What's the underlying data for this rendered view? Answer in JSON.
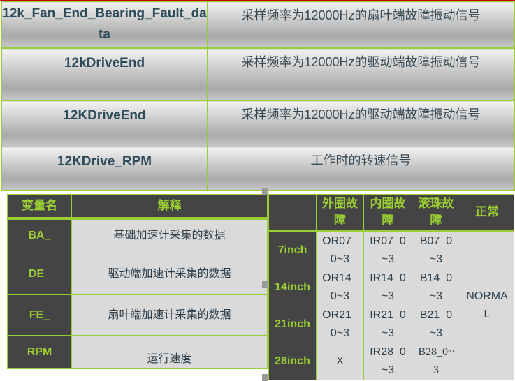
{
  "signals": [
    {
      "name": "12k_Fan_End_Bearing_Fault_data",
      "desc": "采样频率为12000Hz的扇叶端故障振动信号"
    },
    {
      "name": "12kDriveEnd",
      "desc": "采样频率为12000Hz的驱动端故障振动信号"
    },
    {
      "name": "12KDriveEnd",
      "desc": "采样频率为12000Hz的驱动端故障振动信号"
    },
    {
      "name": "12KDrive_RPM",
      "desc": "工作时的转速信号"
    }
  ],
  "variables": {
    "headers": [
      "变量名",
      "解释"
    ],
    "rows": [
      {
        "name": "BA_",
        "desc": "基础加速计采集的数据"
      },
      {
        "name": "DE_",
        "desc": "驱动端加速计采集的数据"
      },
      {
        "name": "FE_",
        "desc": "扇叶端加速计采集的数据"
      },
      {
        "name": "RPM",
        "desc": "运行速度"
      }
    ]
  },
  "faults": {
    "headers": [
      "",
      "外圈故障",
      "内圈故障",
      "滚珠故障",
      "正常"
    ],
    "normal": "NORMAL",
    "rows": [
      {
        "size": "7inch",
        "outer": "OR07_0~3",
        "inner": "IR07_0~3",
        "ball": "B07_0~3"
      },
      {
        "size": "14inch",
        "outer": "OR14_0~3",
        "inner": "IR14_0~3",
        "ball": "B14_0~3"
      },
      {
        "size": "21inch",
        "outer": "OR21_0~3",
        "inner": "IR21_0~3",
        "ball": "B21_0~3"
      },
      {
        "size": "28inch",
        "outer": "X",
        "inner": "IR28_0~3",
        "ball": "B28_0~3"
      }
    ]
  },
  "colors": {
    "accent": "#9acd32",
    "header_bg": "#444444",
    "cell_bg": "#dadada",
    "missing": "#ee0000"
  }
}
